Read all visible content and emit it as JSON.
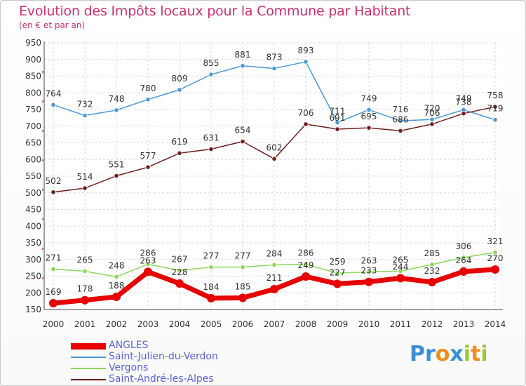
{
  "title": "Evolution des Impôts locaux pour la Commune par Habitant",
  "subtitle": "(en € et par an)",
  "logo": {
    "text": "Proxiti",
    "letters": [
      "P",
      "r",
      "o",
      "x",
      "i",
      "t",
      "i"
    ],
    "colors": [
      "#3a8fd6",
      "#3a8fd6",
      "#f08c1e",
      "#3a8fd6",
      "#9ac832",
      "#f08c1e",
      "#9ac832"
    ]
  },
  "chart_data": {
    "type": "line",
    "title": "Evolution des Impôts locaux pour la Commune par Habitant",
    "x": [
      "2000",
      "2001",
      "2002",
      "2003",
      "2004",
      "2005",
      "2006",
      "2007",
      "2008",
      "2009",
      "2010",
      "2011",
      "2012",
      "2013",
      "2014"
    ],
    "ylim": [
      150,
      950
    ],
    "yticks": [
      150,
      200,
      250,
      300,
      350,
      400,
      450,
      500,
      550,
      600,
      650,
      700,
      750,
      800,
      850,
      900,
      950
    ],
    "grid": true,
    "legend_position": "bottom-left",
    "series": [
      {
        "name": "ANGLES",
        "color": "#e60000",
        "values": [
          169,
          178,
          188,
          263,
          228,
          184,
          185,
          211,
          249,
          227,
          233,
          244,
          232,
          264,
          270
        ],
        "labels": [
          "169",
          "178",
          "188",
          "263",
          "228",
          "184",
          "185",
          "211",
          "249",
          "227",
          "233",
          "244",
          "232",
          "264",
          "270"
        ]
      },
      {
        "name": "Saint-Julien-du-Verdon",
        "color": "#4a98d4",
        "values": [
          764,
          732,
          748,
          780,
          809,
          855,
          881,
          873,
          893,
          711,
          749,
          716,
          720,
          749,
          719
        ],
        "labels": [
          "764",
          "732",
          "748",
          "780",
          "809",
          "855",
          "881",
          "873",
          "893",
          "711",
          "749",
          "716",
          "720",
          "749",
          "719"
        ]
      },
      {
        "name": "Vergons",
        "color": "#8cd65a",
        "values": [
          271,
          265,
          248,
          286,
          267,
          277,
          277,
          284,
          286,
          259,
          263,
          265,
          285,
          306,
          321
        ],
        "labels": [
          "271",
          "265",
          "248",
          "286",
          "267",
          "277",
          "277",
          "284",
          "286",
          "259",
          "263",
          "265",
          "285",
          "306",
          "321"
        ]
      },
      {
        "name": "Saint-André-les-Alpes",
        "color": "#6e1e1e",
        "values": [
          502,
          514,
          551,
          577,
          619,
          631,
          654,
          602,
          706,
          691,
          695,
          686,
          706,
          738,
          758
        ],
        "labels": [
          "502",
          "514",
          "551",
          "577",
          "619",
          "631",
          "654",
          "602",
          "706",
          "691",
          "695",
          "686",
          "706",
          "738",
          "758"
        ]
      }
    ]
  }
}
